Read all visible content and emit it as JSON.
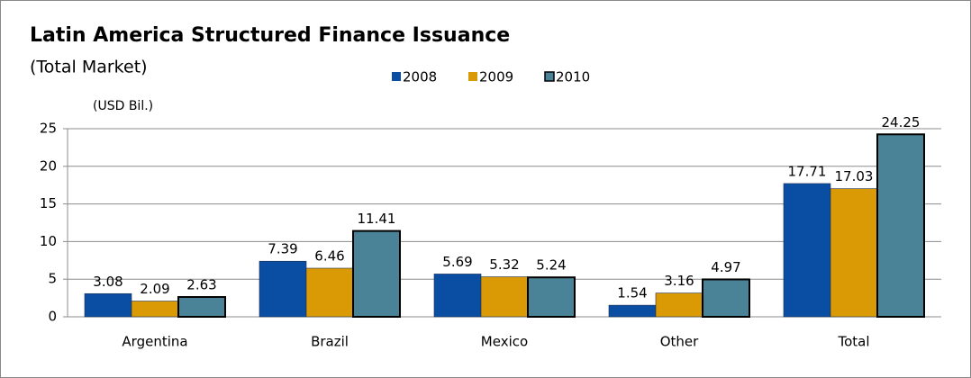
{
  "chart_data": {
    "type": "bar",
    "title": "Latin America Structured Finance Issuance",
    "subtitle": "(Total Market)",
    "y_label": "(USD Bil.)",
    "categories": [
      "Argentina",
      "Brazil",
      "Mexico",
      "Other",
      "Total"
    ],
    "series": [
      {
        "name": "2008",
        "color": "#0a4ea3",
        "values": [
          3.08,
          7.39,
          5.69,
          1.54,
          17.71
        ]
      },
      {
        "name": "2009",
        "color": "#d99a06",
        "values": [
          2.09,
          6.46,
          5.32,
          3.16,
          17.03
        ]
      },
      {
        "name": "2010",
        "color": "#4a8397",
        "values": [
          2.63,
          11.41,
          5.24,
          4.97,
          24.25
        ]
      }
    ],
    "ylim": [
      0,
      25
    ],
    "yticks": [
      0,
      5,
      10,
      15,
      20,
      25
    ],
    "grid": true
  }
}
